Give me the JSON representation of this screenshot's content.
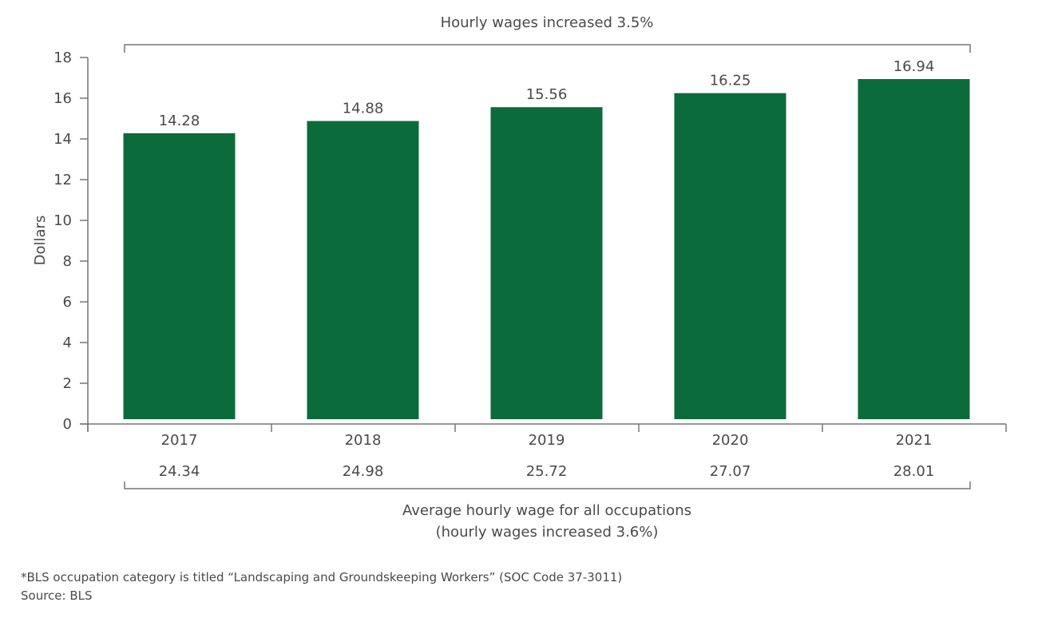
{
  "chart_data": {
    "type": "bar",
    "title": "",
    "ylabel": "Dollars",
    "xlabel": "",
    "ylim": [
      0,
      18
    ],
    "yticks": [
      0,
      2,
      4,
      6,
      8,
      10,
      12,
      14,
      16,
      18
    ],
    "categories": [
      "2017",
      "2018",
      "2019",
      "2020",
      "2021"
    ],
    "values": [
      14.28,
      14.88,
      15.56,
      16.25,
      16.94
    ],
    "data_labels": [
      "14.28",
      "14.88",
      "15.56",
      "16.25",
      "16.94"
    ],
    "bar_color": "#0b6b3a",
    "grid": false,
    "top_annotation": "Hourly wages increased 3.5%",
    "all_occupations_values": [
      "24.34",
      "24.98",
      "25.72",
      "27.07",
      "28.01"
    ],
    "bottom_annotation_line1": "Average hourly wage for all occupations",
    "bottom_annotation_line2": "(hourly wages increased 3.6%)"
  },
  "footnote": "*BLS occupation category is titled “Landscaping and Groundskeeping Workers” (SOC Code 37-3011)",
  "source": "Source: BLS"
}
